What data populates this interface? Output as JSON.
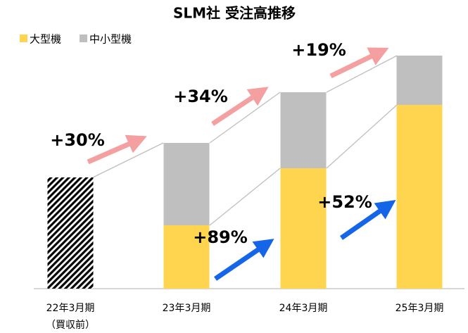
{
  "chart_data": {
    "type": "stacked_bar",
    "title": "SLM社 受注高推移",
    "categories": [
      "22年3月期",
      "23年3月期",
      "24年3月期",
      "25年3月期"
    ],
    "category_sublabels": [
      "（買収前）",
      null,
      null,
      null
    ],
    "series": [
      {
        "name": "大型機",
        "color": "#FFD54F",
        "values": [
          null,
          90,
          171,
          261
        ]
      },
      {
        "name": "中小型機",
        "color": "#BFBFBF",
        "values": [
          null,
          117,
          108,
          70
        ]
      },
      {
        "color": "hatch",
        "values": [
          158,
          null,
          null,
          null
        ]
      }
    ],
    "ylim": [
      0,
      400
    ],
    "annotations": [
      {
        "text": "+30%",
        "color": "#F4A0A0"
      },
      {
        "text": "+34%",
        "color": "#F4A0A0"
      },
      {
        "text": "+19%",
        "color": "#F4A0A0"
      },
      {
        "text": "+89%",
        "color": "#1565E8"
      },
      {
        "text": "+52%",
        "color": "#1565E8"
      }
    ]
  }
}
